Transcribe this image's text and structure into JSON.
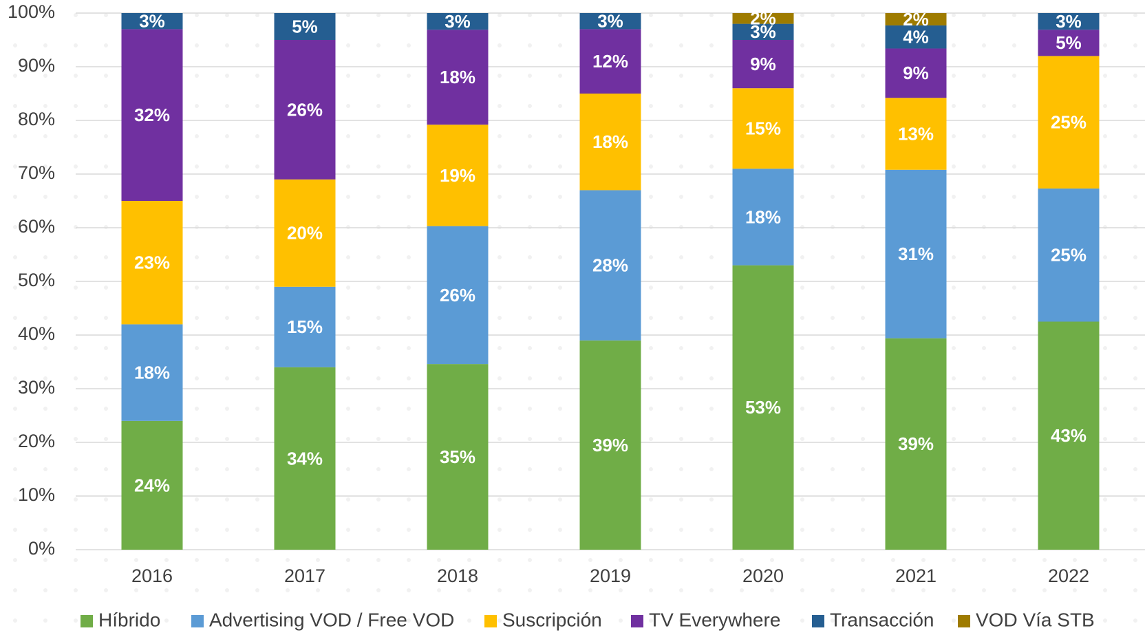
{
  "chart_data": {
    "type": "stacked_bar",
    "categories": [
      "2016",
      "2017",
      "2018",
      "2019",
      "2020",
      "2021",
      "2022"
    ],
    "series": [
      {
        "name": "Híbrido",
        "color": "#70ad47",
        "values": [
          24,
          34,
          34.6,
          39,
          53,
          39.4,
          42.5
        ],
        "value_labels": [
          "24%",
          "34%",
          "35%",
          "39%",
          "53%",
          "39%",
          "43%"
        ]
      },
      {
        "name": "Advertising VOD / Free VOD",
        "color": "#5b9bd5",
        "values": [
          18,
          15,
          25.7,
          28,
          18,
          31.4,
          24.8
        ],
        "value_labels": [
          "18%",
          "15%",
          "26%",
          "28%",
          "18%",
          "31%",
          "25%"
        ]
      },
      {
        "name": "Suscripción",
        "color": "#ffc000",
        "values": [
          23,
          20,
          18.9,
          18,
          15,
          13.4,
          24.7
        ],
        "value_labels": [
          "23%",
          "20%",
          "19%",
          "18%",
          "15%",
          "13%",
          "25%"
        ]
      },
      {
        "name": "TV Everywhere",
        "color": "#7030a0",
        "values": [
          32,
          26,
          17.7,
          12,
          9,
          9.2,
          4.9
        ],
        "value_labels": [
          "32%",
          "26%",
          "18%",
          "12%",
          "9%",
          "9%",
          "5%"
        ]
      },
      {
        "name": "Transacción",
        "color": "#255e91",
        "values": [
          3,
          5,
          3.1,
          3,
          3,
          4.3,
          3.1
        ],
        "value_labels": [
          "3%",
          "5%",
          "3%",
          "3%",
          "3%",
          "4%",
          "3%"
        ]
      },
      {
        "name": "VOD Vía STB",
        "color": "#9e7b00",
        "values": [
          null,
          null,
          null,
          null,
          2,
          2.3,
          null
        ],
        "value_labels": [
          null,
          null,
          null,
          null,
          "2%",
          "2%",
          null
        ]
      }
    ],
    "ylim": [
      0,
      100
    ],
    "yticks": [
      {
        "value": 0,
        "label": "0%"
      },
      {
        "value": 10,
        "label": "10%"
      },
      {
        "value": 20,
        "label": "20%"
      },
      {
        "value": 30,
        "label": "30%"
      },
      {
        "value": 40,
        "label": "40%"
      },
      {
        "value": 50,
        "label": "50%"
      },
      {
        "value": 60,
        "label": "60%"
      },
      {
        "value": 70,
        "label": "70%"
      },
      {
        "value": 80,
        "label": "80%"
      },
      {
        "value": 90,
        "label": "90%"
      },
      {
        "value": 100,
        "label": "100%"
      }
    ],
    "grid": true,
    "legend": "bottom"
  }
}
